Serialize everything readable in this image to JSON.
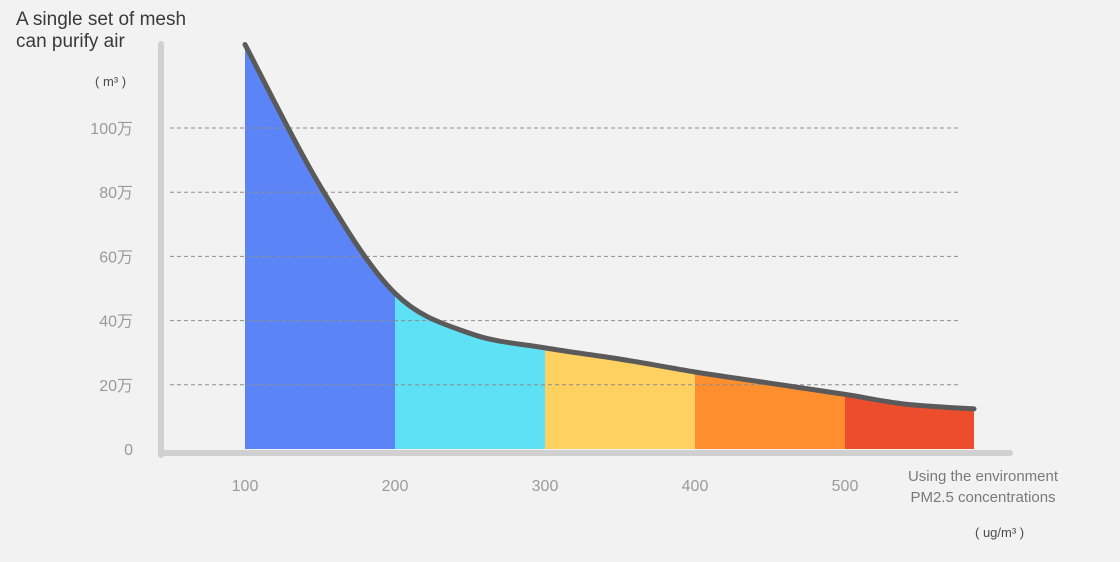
{
  "chart_data": {
    "type": "area",
    "title": "A single set of mesh\ncan purify air",
    "y_unit": "( m³ )",
    "xlabel": "Using the environment\nPM2.5 concentrations",
    "x_unit": "( ug/m³ )",
    "x_ticks": [
      100,
      200,
      300,
      400,
      500
    ],
    "y_ticks": [
      {
        "value": 0,
        "label": "0"
      },
      {
        "value": 200000,
        "label": "20万"
      },
      {
        "value": 400000,
        "label": "40万"
      },
      {
        "value": 600000,
        "label": "60万"
      },
      {
        "value": 800000,
        "label": "80万"
      },
      {
        "value": 1000000,
        "label": "100万"
      }
    ],
    "xlim": [
      100,
      588
    ],
    "ylim": [
      0,
      1000000
    ],
    "grid": true,
    "curve": [
      {
        "x": 100,
        "y": 1260000
      },
      {
        "x": 150,
        "y": 820000
      },
      {
        "x": 200,
        "y": 485000
      },
      {
        "x": 250,
        "y": 360000
      },
      {
        "x": 300,
        "y": 315000
      },
      {
        "x": 350,
        "y": 280000
      },
      {
        "x": 400,
        "y": 240000
      },
      {
        "x": 450,
        "y": 205000
      },
      {
        "x": 500,
        "y": 170000
      },
      {
        "x": 540,
        "y": 140000
      },
      {
        "x": 586,
        "y": 125000
      }
    ],
    "bands": [
      {
        "from": 100,
        "to": 200,
        "color": "#5b84f7"
      },
      {
        "from": 200,
        "to": 300,
        "color": "#5fe1f5"
      },
      {
        "from": 300,
        "to": 400,
        "color": "#ffd160"
      },
      {
        "from": 400,
        "to": 500,
        "color": "#ff8f2e"
      },
      {
        "from": 500,
        "to": 586,
        "color": "#ec4d2d"
      }
    ],
    "line_color": "#5a5a5a",
    "axis_color": "#d0d0d0"
  }
}
